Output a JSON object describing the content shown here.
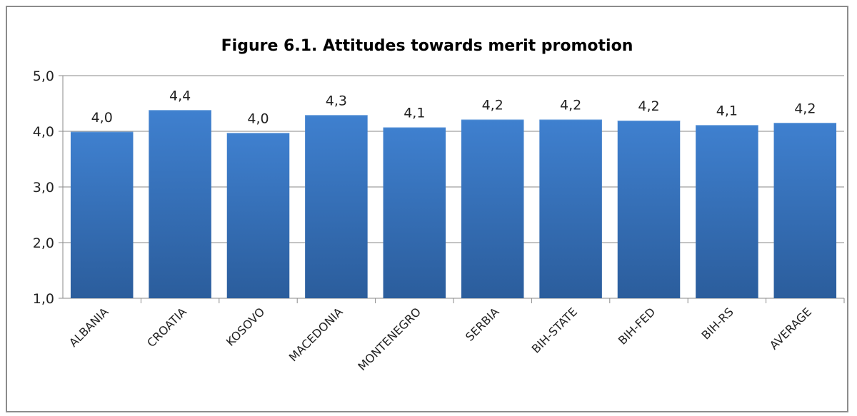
{
  "chart_data": {
    "type": "bar",
    "title": "Figure 6.1. Attitudes towards merit promotion",
    "xlabel": "",
    "ylabel": "",
    "ylim": [
      1.0,
      5.0
    ],
    "yticks": [
      "1,0",
      "2,0",
      "3,0",
      "4,0",
      "5,0"
    ],
    "categories": [
      "ALBANIA",
      "CROATIA",
      "KOSOVO",
      "MACEDONIA",
      "MONTENEGRO",
      "SERBIA",
      "BIH-STATE",
      "BIH-FED",
      "BIH-RS",
      "AVERAGE"
    ],
    "values": [
      3.99,
      4.38,
      3.97,
      4.29,
      4.07,
      4.21,
      4.21,
      4.19,
      4.11,
      4.15
    ],
    "value_labels": [
      "4,0",
      "4,4",
      "4,0",
      "4,3",
      "4,1",
      "4,2",
      "4,2",
      "4,2",
      "4,1",
      "4,2"
    ],
    "grid": true,
    "legend": "none",
    "colors": {
      "bar_top": "#3f80cf",
      "bar_bottom": "#2b5d9c",
      "grid": "#8a8a8a",
      "axis": "#8a8a8a"
    }
  }
}
